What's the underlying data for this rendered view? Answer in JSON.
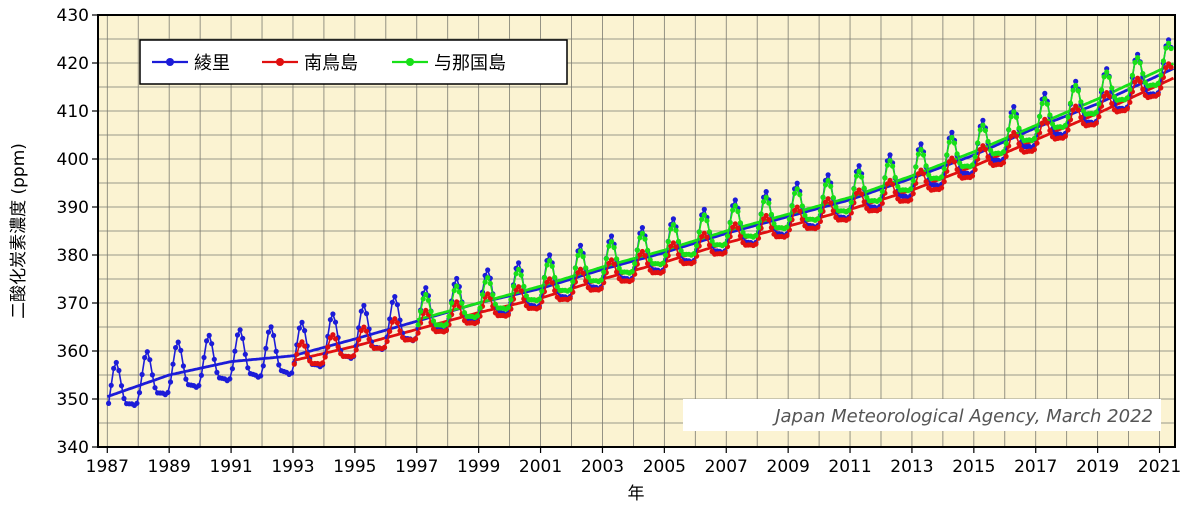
{
  "chart_data": {
    "type": "line",
    "xlabel": "年",
    "ylabel": "二酸化炭素濃度 (ppm)",
    "xlim": [
      1986.7,
      2021.5
    ],
    "ylim": [
      340,
      430
    ],
    "x_ticks": [
      "1987",
      "1989",
      "1991",
      "1993",
      "1995",
      "1997",
      "1999",
      "2001",
      "2003",
      "2005",
      "2007",
      "2009",
      "2011",
      "2013",
      "2015",
      "2017",
      "2019",
      "2021"
    ],
    "y_ticks": [
      "340",
      "350",
      "360",
      "370",
      "380",
      "390",
      "400",
      "410",
      "420",
      "430"
    ],
    "grid": true,
    "legend_position": "top-left",
    "credit": "Japan Meteorological Agency, March 2022",
    "background_color": "#fbf3d2",
    "series": [
      {
        "name": "綾里",
        "color": "#1c1cd8",
        "start_year": 1987,
        "seasonal_amplitude": 6.5,
        "trend": [
          [
            1987,
            350.5
          ],
          [
            1989,
            355.0
          ],
          [
            1991,
            357.8
          ],
          [
            1993,
            359.0
          ],
          [
            1995,
            362.5
          ],
          [
            1997,
            366.2
          ],
          [
            1999,
            370.0
          ],
          [
            2001,
            373.0
          ],
          [
            2003,
            377.0
          ],
          [
            2005,
            380.5
          ],
          [
            2007,
            384.5
          ],
          [
            2009,
            388.0
          ],
          [
            2011,
            391.5
          ],
          [
            2013,
            396.0
          ],
          [
            2015,
            400.8
          ],
          [
            2017,
            406.5
          ],
          [
            2019,
            411.5
          ],
          [
            2021,
            417.5
          ]
        ]
      },
      {
        "name": "南鳥島",
        "color": "#e01010",
        "start_year": 1993,
        "seasonal_amplitude": 3.5,
        "trend": [
          [
            1993,
            358.0
          ],
          [
            1995,
            361.0
          ],
          [
            1997,
            364.5
          ],
          [
            1999,
            368.0
          ],
          [
            2001,
            371.0
          ],
          [
            2003,
            375.0
          ],
          [
            2005,
            378.5
          ],
          [
            2007,
            382.5
          ],
          [
            2009,
            386.0
          ],
          [
            2011,
            389.5
          ],
          [
            2013,
            393.5
          ],
          [
            2015,
            398.5
          ],
          [
            2017,
            404.0
          ],
          [
            2019,
            409.5
          ],
          [
            2021,
            415.5
          ]
        ]
      },
      {
        "name": "与那国島",
        "color": "#18e018",
        "start_year": 1997,
        "seasonal_amplitude": 4.8,
        "trend": [
          [
            1997,
            366.5
          ],
          [
            1999,
            370.0
          ],
          [
            2001,
            373.5
          ],
          [
            2003,
            377.5
          ],
          [
            2005,
            381.0
          ],
          [
            2007,
            385.0
          ],
          [
            2009,
            388.5
          ],
          [
            2011,
            392.0
          ],
          [
            2013,
            396.5
          ],
          [
            2015,
            401.5
          ],
          [
            2017,
            407.0
          ],
          [
            2019,
            412.5
          ],
          [
            2021,
            418.5
          ]
        ]
      }
    ]
  }
}
